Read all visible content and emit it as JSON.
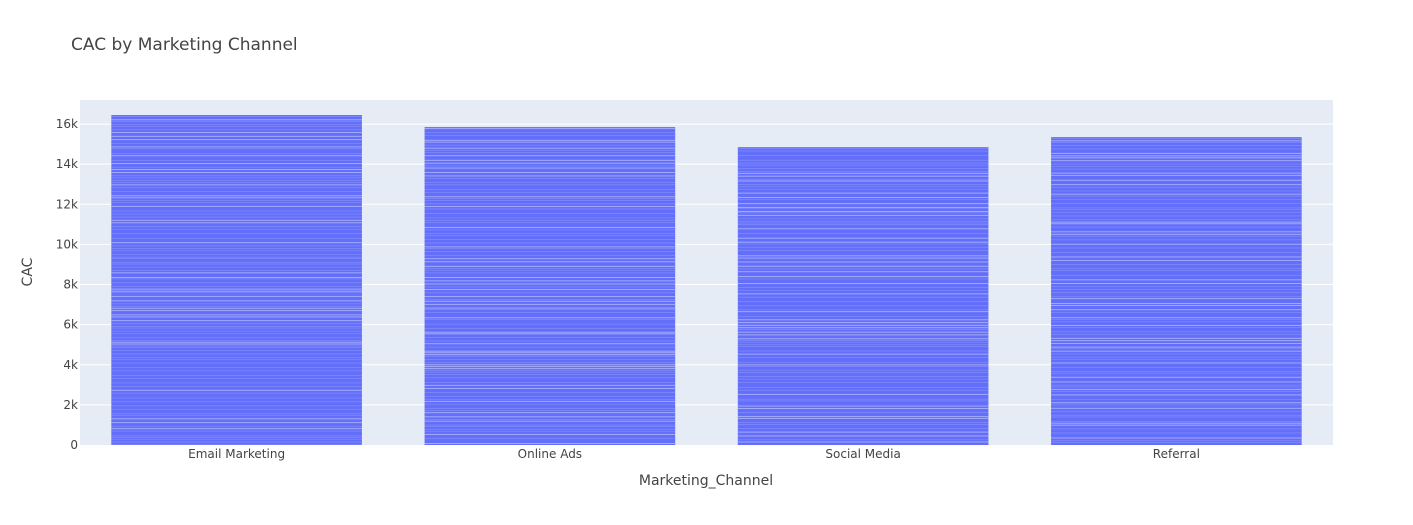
{
  "chart_data": {
    "type": "bar",
    "title": "CAC by Marketing Channel",
    "xlabel": "Marketing_Channel",
    "ylabel": "CAC",
    "categories": [
      "Email Marketing",
      "Online Ads",
      "Social Media",
      "Referral"
    ],
    "values": [
      16450,
      15850,
      14850,
      15350
    ],
    "ylim": [
      0,
      17200
    ],
    "yticks": [
      0,
      2000,
      4000,
      6000,
      8000,
      10000,
      12000,
      14000,
      16000
    ],
    "ytick_labels": [
      "0",
      "2k",
      "4k",
      "6k",
      "8k",
      "10k",
      "12k",
      "14k",
      "16k"
    ],
    "grid": true,
    "legend": "none",
    "colors": {
      "bar": "#636efa",
      "bar_stripe": "#aab0fb",
      "plot_background": "#e5ecf6",
      "gridline": "#ffffff",
      "text": "#444444"
    }
  }
}
